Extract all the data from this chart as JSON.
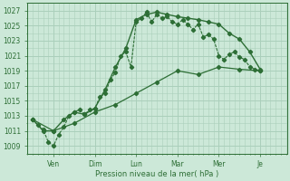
{
  "bg_color": "#cce8d8",
  "grid_color": "#aacfbb",
  "line_color": "#2d6e35",
  "xlabel": "Pression niveau de la mer( hPa )",
  "ylim": [
    1008,
    1028
  ],
  "yticks": [
    1009,
    1011,
    1013,
    1015,
    1017,
    1019,
    1021,
    1023,
    1025,
    1027
  ],
  "x_day_labels": [
    "Ven",
    "Dim",
    "Lun",
    "Mar",
    "Mer",
    "Je"
  ],
  "x_day_positions": [
    24,
    72,
    120,
    168,
    216,
    264
  ],
  "xlim": [
    -6,
    295
  ],
  "series1_x": [
    0,
    6,
    12,
    18,
    24,
    30,
    36,
    42,
    48,
    54,
    60,
    66,
    72,
    78,
    84,
    90,
    96,
    102,
    108,
    114,
    120,
    126,
    132,
    138,
    144,
    150,
    156,
    162,
    168,
    174,
    180,
    186,
    192,
    198,
    204,
    210,
    216,
    222,
    228,
    234,
    240,
    246,
    252,
    258,
    264
  ],
  "series1_y": [
    1012.5,
    1011.8,
    1011.2,
    1009.5,
    1009.0,
    1010.5,
    1011.5,
    1013.0,
    1013.5,
    1013.8,
    1013.2,
    1013.8,
    1014.0,
    1015.5,
    1016.0,
    1017.8,
    1018.8,
    1021.0,
    1021.5,
    1019.5,
    1025.5,
    1026.0,
    1026.8,
    1025.5,
    1026.5,
    1026.0,
    1026.2,
    1025.5,
    1025.2,
    1025.8,
    1025.2,
    1024.5,
    1025.2,
    1023.5,
    1023.8,
    1023.2,
    1021.0,
    1020.5,
    1021.2,
    1021.5,
    1020.8,
    1020.5,
    1019.5,
    1019.2,
    1019.0
  ],
  "series2_x": [
    0,
    12,
    24,
    36,
    48,
    60,
    72,
    84,
    96,
    108,
    120,
    132,
    144,
    156,
    168,
    180,
    192,
    204,
    216,
    228,
    240,
    252,
    264
  ],
  "series2_y": [
    1012.5,
    1011.0,
    1011.0,
    1012.5,
    1013.5,
    1013.2,
    1014.0,
    1016.5,
    1019.5,
    1022.0,
    1025.8,
    1026.5,
    1026.8,
    1026.5,
    1026.2,
    1026.0,
    1025.8,
    1025.5,
    1025.2,
    1024.0,
    1023.2,
    1021.5,
    1019.2
  ],
  "series3_x": [
    0,
    24,
    48,
    72,
    96,
    120,
    144,
    168,
    192,
    216,
    240,
    264
  ],
  "series3_y": [
    1012.5,
    1011.0,
    1012.0,
    1013.5,
    1014.5,
    1016.0,
    1017.5,
    1019.0,
    1018.5,
    1019.5,
    1019.2,
    1019.0
  ]
}
